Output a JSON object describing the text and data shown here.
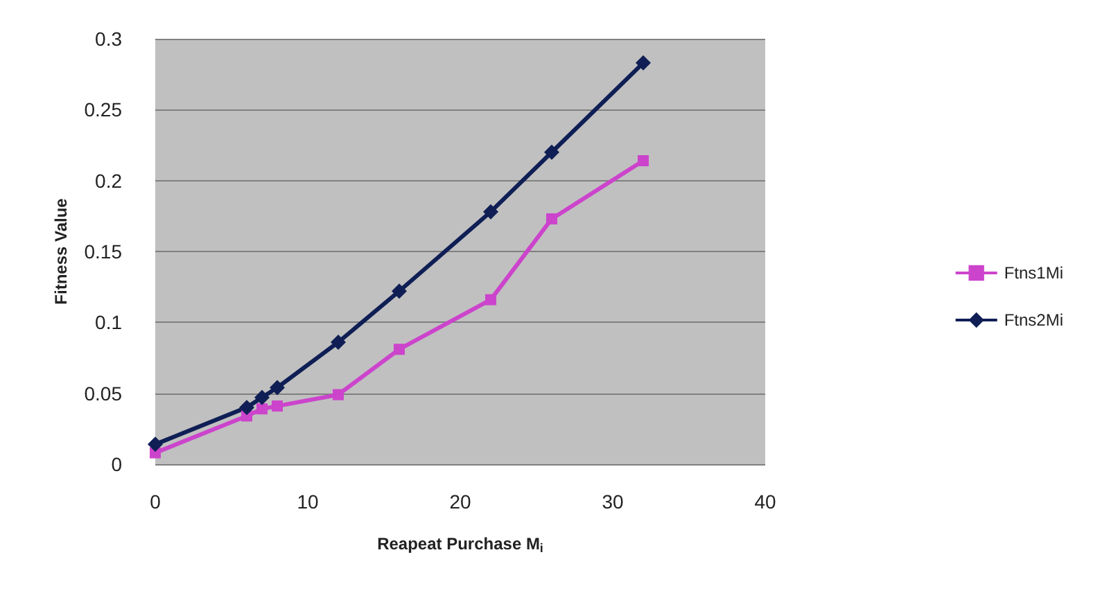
{
  "chart_data": {
    "type": "line",
    "xlabel": "Reapeat Purchase M$_{i}$",
    "ylabel": "Fitness Value",
    "xlim": [
      0,
      40
    ],
    "xticks": [
      0,
      10,
      20,
      30,
      40
    ],
    "ylim": [
      0,
      0.3
    ],
    "yticks": [
      0,
      0.05,
      0.1,
      0.15,
      0.2,
      0.25,
      0.3
    ],
    "grid": "y",
    "legend": "right",
    "x": [
      0,
      6,
      7,
      8,
      12,
      16,
      22,
      26,
      32
    ],
    "series": [
      {
        "name": "Ftns1Mi",
        "color": "#cc44cc",
        "marker": "square",
        "values": [
          0.008,
          0.034,
          0.039,
          0.041,
          0.049,
          0.081,
          0.116,
          0.173,
          0.214
        ]
      },
      {
        "name": "Ftns2Mi",
        "color": "#0f1f55",
        "marker": "diamond",
        "values": [
          0.014,
          0.04,
          0.047,
          0.054,
          0.086,
          0.122,
          0.178,
          0.22,
          0.283
        ]
      }
    ]
  }
}
